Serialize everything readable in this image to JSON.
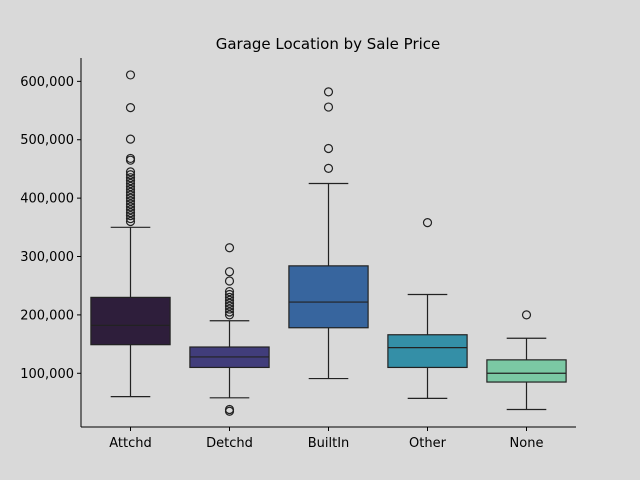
{
  "chart_data": {
    "type": "box",
    "title": "Garage Location by Sale Price",
    "xlabel": "",
    "ylabel": "",
    "categories": [
      "Attchd",
      "Detchd",
      "BuiltIn",
      "Other",
      "None"
    ],
    "ylim": [
      8000,
      640000
    ],
    "yticks": [
      100000,
      200000,
      300000,
      400000,
      500000,
      600000
    ],
    "ytick_labels": [
      "100,000",
      "200,000",
      "300,000",
      "400,000",
      "500,000",
      "600,000"
    ],
    "grid": false,
    "colors": [
      "#2e1e3b",
      "#413d7b",
      "#37659e",
      "#348fa7",
      "#7bc8a4"
    ],
    "boxes": [
      {
        "category": "Attchd",
        "whisker_low": 60000,
        "q1": 149000,
        "median": 182000,
        "q3": 230000,
        "whisker_high": 350000,
        "outliers": [
          360000,
          365000,
          370000,
          375000,
          380000,
          385000,
          390000,
          395000,
          400000,
          405000,
          410000,
          415000,
          420000,
          425000,
          430000,
          435000,
          440000,
          445000,
          465000,
          468000,
          501000,
          555000,
          611000
        ]
      },
      {
        "category": "Detchd",
        "whisker_low": 58000,
        "q1": 110000,
        "median": 128000,
        "q3": 145000,
        "whisker_high": 190000,
        "outliers": [
          35000,
          38000,
          200000,
          205000,
          210000,
          215000,
          220000,
          225000,
          230000,
          235000,
          240000,
          258000,
          274000,
          315000
        ]
      },
      {
        "category": "BuiltIn",
        "whisker_low": 91000,
        "q1": 178000,
        "median": 222000,
        "q3": 284000,
        "whisker_high": 425000,
        "outliers": [
          451000,
          485000,
          556000,
          582000
        ]
      },
      {
        "category": "Other",
        "whisker_low": 57000,
        "q1": 110000,
        "median": 144000,
        "q3": 166000,
        "whisker_high": 235000,
        "outliers": [
          358000
        ]
      },
      {
        "category": "None",
        "whisker_low": 38000,
        "q1": 85000,
        "median": 100000,
        "q3": 123000,
        "whisker_high": 160000,
        "outliers": [
          200000
        ]
      }
    ]
  }
}
